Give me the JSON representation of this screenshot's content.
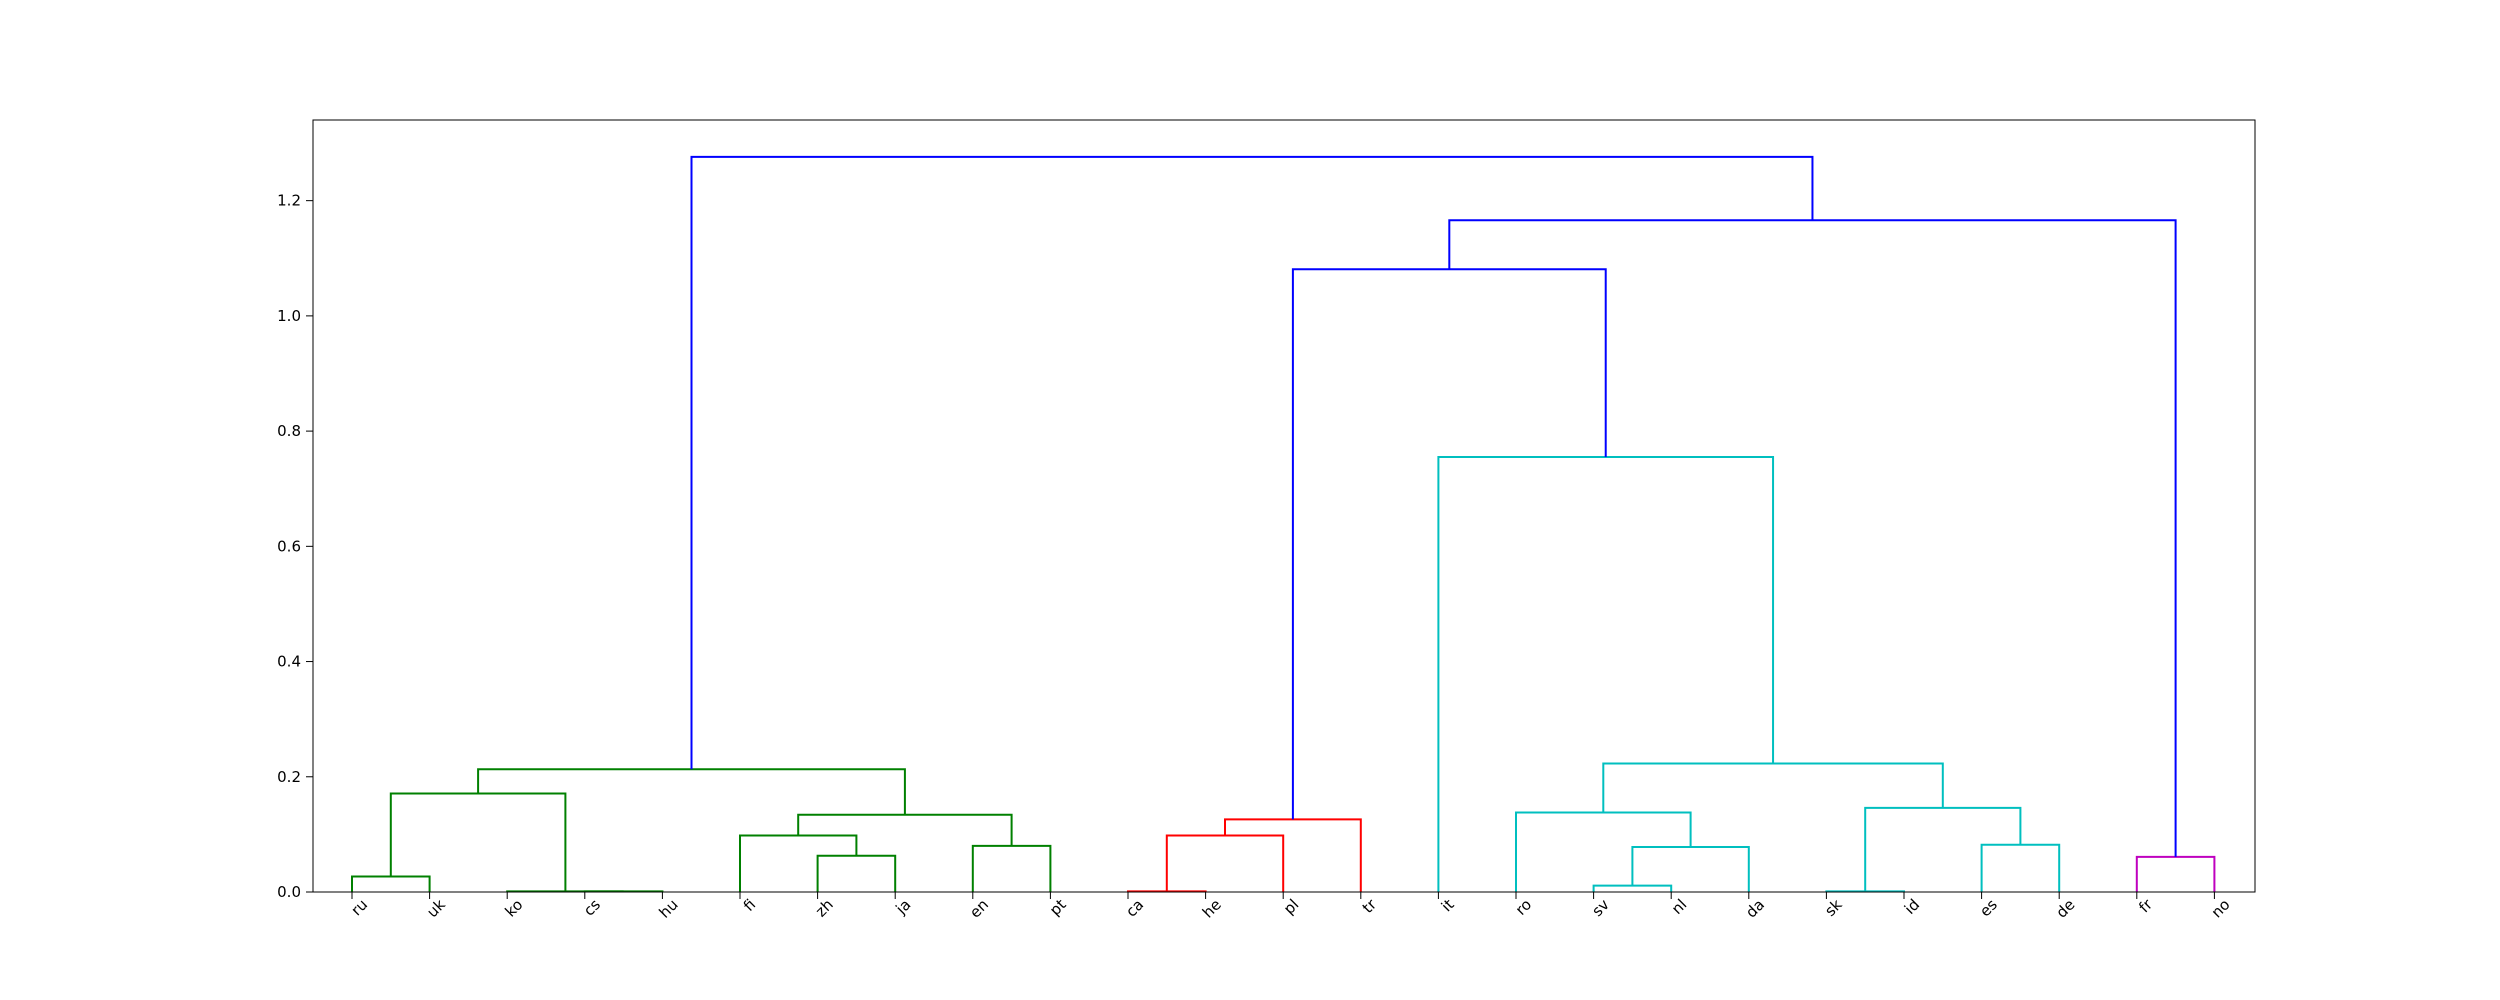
{
  "chart_data": {
    "type": "dendrogram",
    "leaves": [
      "ru",
      "uk",
      "ko",
      "cs",
      "hu",
      "fi",
      "zh",
      "ja",
      "en",
      "pt",
      "ca",
      "he",
      "pl",
      "tr",
      "it",
      "ro",
      "sv",
      "nl",
      "da",
      "sk",
      "id",
      "es",
      "de",
      "fr",
      "no"
    ],
    "ylim": [
      0,
      1.34
    ],
    "yticks": [
      0.0,
      0.2,
      0.4,
      0.6,
      0.8,
      1.0,
      1.2
    ],
    "ytick_labels": [
      "0.0",
      "0.2",
      "0.4",
      "0.6",
      "0.8",
      "1.0",
      "1.2"
    ],
    "colors": {
      "green": "#008000",
      "red": "#ff0000",
      "cyan": "#00bfbf",
      "magenta": "#bf00bf",
      "blue": "#0000ff"
    },
    "links": [
      {
        "a": "ru",
        "b": "uk",
        "height": 0.027,
        "color": "green"
      },
      {
        "a": "cs",
        "b": "hu",
        "height": 0.001,
        "color": "green"
      },
      {
        "a": "ko",
        "b": "cs|hu",
        "height": 0.001,
        "color": "green"
      },
      {
        "a": "ru|uk",
        "b": "ko|cs|hu",
        "height": 0.171,
        "color": "green"
      },
      {
        "a": "zh",
        "b": "ja",
        "height": 0.063,
        "color": "green"
      },
      {
        "a": "fi",
        "b": "zh|ja",
        "height": 0.098,
        "color": "green"
      },
      {
        "a": "en",
        "b": "pt",
        "height": 0.08,
        "color": "green"
      },
      {
        "a": "fi|zh|ja",
        "b": "en|pt",
        "height": 0.134,
        "color": "green"
      },
      {
        "a": "ru|uk|ko|cs|hu",
        "b": "fi|zh|ja|en|pt",
        "height": 0.213,
        "color": "green"
      },
      {
        "a": "ca",
        "b": "he",
        "height": 0.001,
        "color": "red"
      },
      {
        "a": "ca|he",
        "b": "pl",
        "height": 0.098,
        "color": "red"
      },
      {
        "a": "ca|he|pl",
        "b": "tr",
        "height": 0.126,
        "color": "red"
      },
      {
        "a": "sv",
        "b": "nl",
        "height": 0.011,
        "color": "cyan"
      },
      {
        "a": "sv|nl",
        "b": "da",
        "height": 0.078,
        "color": "cyan"
      },
      {
        "a": "ro",
        "b": "sv|nl|da",
        "height": 0.138,
        "color": "cyan"
      },
      {
        "a": "es",
        "b": "de",
        "height": 0.082,
        "color": "cyan"
      },
      {
        "a": "sk",
        "b": "id",
        "height": 0.001,
        "color": "cyan"
      },
      {
        "a": "sk|id",
        "b": "es|de",
        "height": 0.146,
        "color": "cyan"
      },
      {
        "a": "ro|sv|nl|da",
        "b": "sk|id|es|de",
        "height": 0.223,
        "color": "cyan"
      },
      {
        "a": "it",
        "b": "ro|sv|nl|da|sk|id|es|de",
        "height": 0.755,
        "color": "cyan"
      },
      {
        "a": "fr",
        "b": "no",
        "height": 0.061,
        "color": "magenta"
      },
      {
        "a": "ca|he|pl|tr",
        "b": "it|ro|sv|nl|da|sk|id|es|de",
        "height": 1.081,
        "color": "blue"
      },
      {
        "a": "ca|he|pl|tr|it|ro|sv|nl|da|sk|id|es|de",
        "b": "fr|no",
        "height": 1.166,
        "color": "blue"
      },
      {
        "a": "ru|uk|ko|cs|hu|fi|zh|ja|en|pt",
        "b": "ca|he|pl|tr|it|ro|sv|nl|da|sk|id|es|de|fr|no",
        "height": 1.276,
        "color": "blue"
      }
    ]
  }
}
